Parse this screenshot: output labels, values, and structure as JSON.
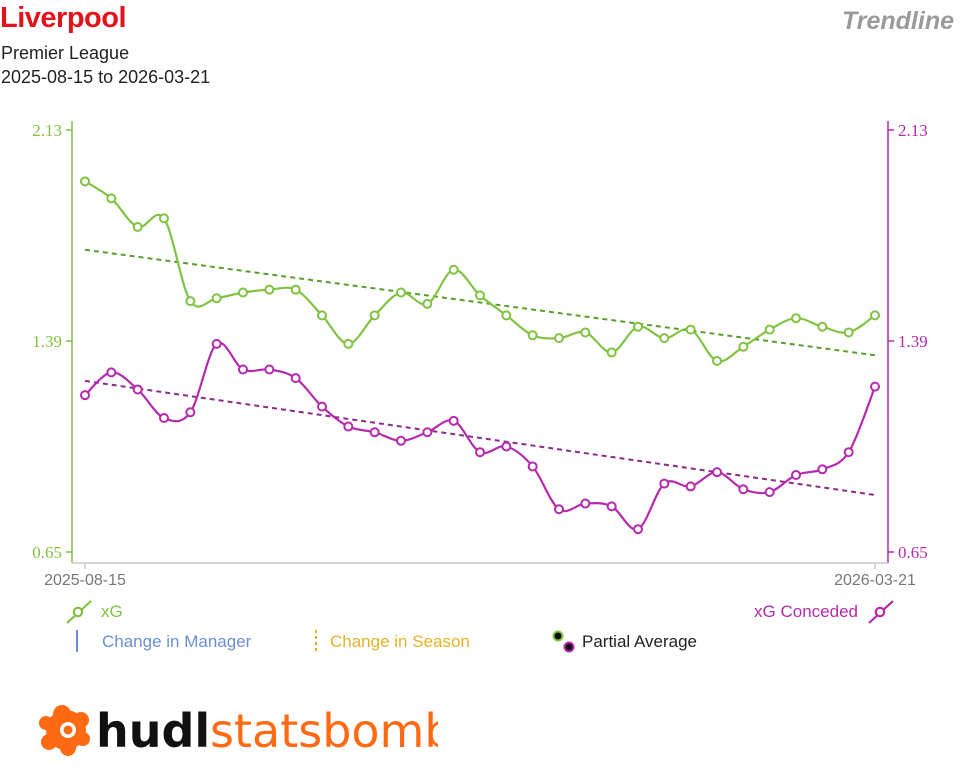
{
  "header": {
    "title": "Liverpool",
    "competition": "Premier League",
    "date_range": "2025-08-15 to 2026-03-21",
    "chart_type_label": "Trendline"
  },
  "colors": {
    "xg": "#80c342",
    "xg_trend": "#5a9e2a",
    "xg_conceded": "#b62aad",
    "xg_conceded_trend": "#8e2a8a",
    "manager": "#6b8fd6",
    "season": "#e3b327",
    "title": "#e3131b"
  },
  "chart_data": {
    "type": "line",
    "x_start_label": "2025-08-15",
    "x_end_label": "2026-03-21",
    "ylim": [
      0.65,
      2.13
    ],
    "y_ticks": [
      "2.13",
      "1.39",
      "0.65"
    ],
    "series": [
      {
        "name": "xG",
        "values": [
          1.95,
          1.89,
          1.79,
          1.82,
          1.53,
          1.54,
          1.56,
          1.57,
          1.57,
          1.48,
          1.38,
          1.48,
          1.56,
          1.52,
          1.64,
          1.55,
          1.48,
          1.41,
          1.4,
          1.42,
          1.35,
          1.44,
          1.4,
          1.43,
          1.32,
          1.37,
          1.43,
          1.47,
          1.44,
          1.42,
          1.48
        ],
        "trend": [
          1.71,
          1.34
        ]
      },
      {
        "name": "xG Conceded",
        "values": [
          1.2,
          1.28,
          1.22,
          1.12,
          1.14,
          1.38,
          1.29,
          1.29,
          1.26,
          1.16,
          1.09,
          1.07,
          1.04,
          1.07,
          1.11,
          1.0,
          1.02,
          0.95,
          0.8,
          0.82,
          0.81,
          0.73,
          0.89,
          0.88,
          0.93,
          0.87,
          0.86,
          0.92,
          0.94,
          1.0,
          1.23
        ],
        "trend": [
          1.25,
          0.85
        ]
      }
    ]
  },
  "legend": {
    "xg": "xG",
    "xg_conceded": "xG Conceded",
    "manager": "Change in Manager",
    "season": "Change in Season",
    "partial": "Partial Average"
  },
  "logo": {
    "word1": "hudl",
    "word2": "statsbomb"
  }
}
